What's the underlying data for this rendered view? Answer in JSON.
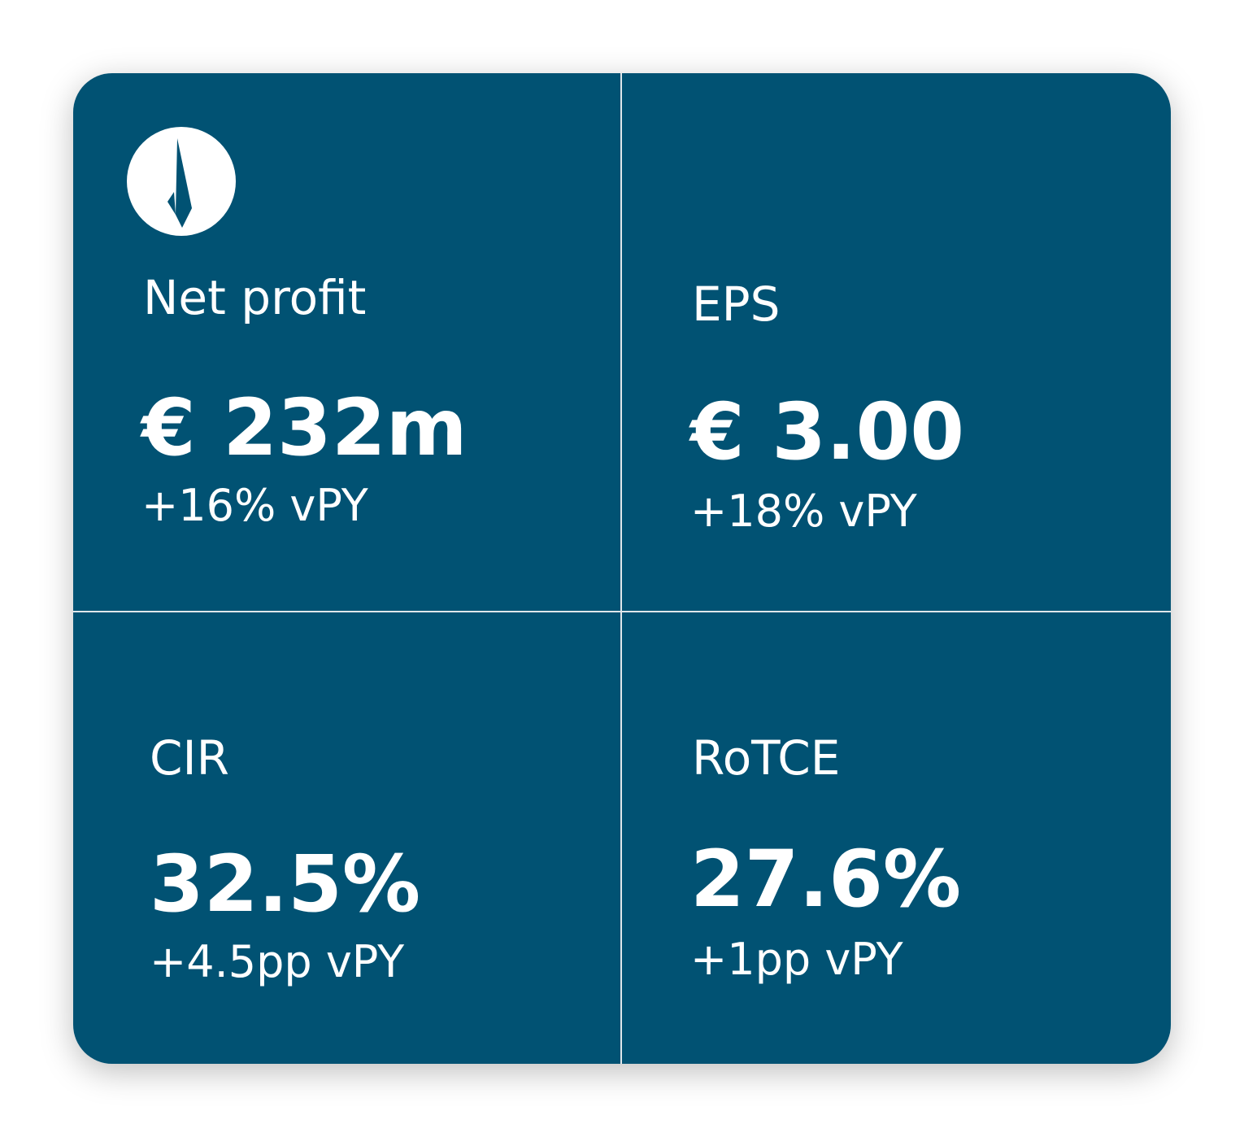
{
  "tiles": [
    {
      "label": "Net profit",
      "value": "€ 232m",
      "change": "+16% vPY"
    },
    {
      "label": "EPS",
      "value": "€ 3.00",
      "change": "+18% vPY"
    },
    {
      "label": "CIR",
      "value": "32.5%",
      "change": "+4.5pp vPY"
    },
    {
      "label": "RoTCE",
      "value": "27.6%",
      "change": "+1pp vPY"
    }
  ]
}
